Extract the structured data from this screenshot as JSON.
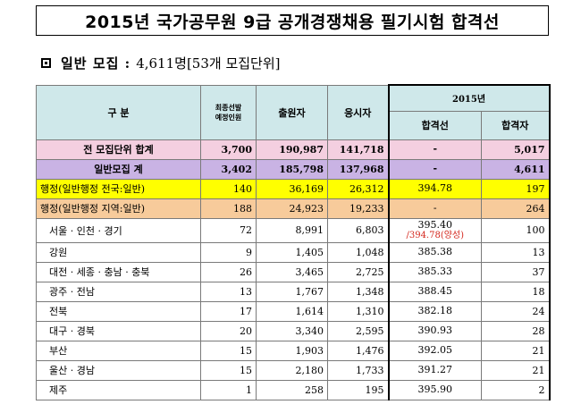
{
  "title": "2015년 국가공무원 9급 공개경쟁채용 필기시험 합격선",
  "subtitle": {
    "prefix": "일반 모집 :",
    "count": "4,611명",
    "units": "[53개 모집단위]"
  },
  "table": {
    "headers": {
      "category": "구 분",
      "planned": "최종선발\n예정인원",
      "applicants": "출원자",
      "examinees": "응시자",
      "year": "2015년",
      "cutoff": "합격선",
      "passers": "합격자"
    },
    "rows": [
      {
        "label": "전 모집단위 합계",
        "planned": "3,700",
        "applicants": "190,987",
        "examinees": "141,718",
        "cutoff": "-",
        "cutoff_alt": "",
        "passers": "5,017",
        "style": "total"
      },
      {
        "label": "일반모집 계",
        "planned": "3,402",
        "applicants": "185,798",
        "examinees": "137,968",
        "cutoff": "-",
        "cutoff_alt": "",
        "passers": "4,611",
        "style": "general"
      },
      {
        "label": "행정(일반행정 전국:일반)",
        "planned": "140",
        "applicants": "36,169",
        "examinees": "26,312",
        "cutoff": "394.78",
        "cutoff_alt": "",
        "passers": "197",
        "style": "hj"
      },
      {
        "label": "행정(일반행정 지역:일반)",
        "planned": "188",
        "applicants": "24,923",
        "examinees": "19,233",
        "cutoff": "-",
        "cutoff_alt": "",
        "passers": "264",
        "style": "hr"
      },
      {
        "label": "서울 · 인천 · 경기",
        "planned": "72",
        "applicants": "8,991",
        "examinees": "6,803",
        "cutoff": "395.40",
        "cutoff_alt": "/394.78(양성)",
        "passers": "100",
        "style": "seoul"
      },
      {
        "label": "강원",
        "planned": "9",
        "applicants": "1,405",
        "examinees": "1,048",
        "cutoff": "385.38",
        "cutoff_alt": "",
        "passers": "13",
        "style": ""
      },
      {
        "label": "대전 · 세종 · 충남 · 충북",
        "planned": "26",
        "applicants": "3,465",
        "examinees": "2,725",
        "cutoff": "385.33",
        "cutoff_alt": "",
        "passers": "37",
        "style": ""
      },
      {
        "label": "광주 · 전남",
        "planned": "13",
        "applicants": "1,767",
        "examinees": "1,348",
        "cutoff": "388.45",
        "cutoff_alt": "",
        "passers": "18",
        "style": ""
      },
      {
        "label": "전북",
        "planned": "17",
        "applicants": "1,614",
        "examinees": "1,310",
        "cutoff": "382.18",
        "cutoff_alt": "",
        "passers": "24",
        "style": ""
      },
      {
        "label": "대구 · 경북",
        "planned": "20",
        "applicants": "3,340",
        "examinees": "2,595",
        "cutoff": "390.93",
        "cutoff_alt": "",
        "passers": "28",
        "style": ""
      },
      {
        "label": "부산",
        "planned": "15",
        "applicants": "1,903",
        "examinees": "1,476",
        "cutoff": "392.05",
        "cutoff_alt": "",
        "passers": "21",
        "style": ""
      },
      {
        "label": "울산 · 경남",
        "planned": "15",
        "applicants": "2,180",
        "examinees": "1,733",
        "cutoff": "391.27",
        "cutoff_alt": "",
        "passers": "21",
        "style": ""
      },
      {
        "label": "제주",
        "planned": "1",
        "applicants": "258",
        "examinees": "195",
        "cutoff": "395.90",
        "cutoff_alt": "",
        "passers": "2",
        "style": ""
      }
    ]
  }
}
